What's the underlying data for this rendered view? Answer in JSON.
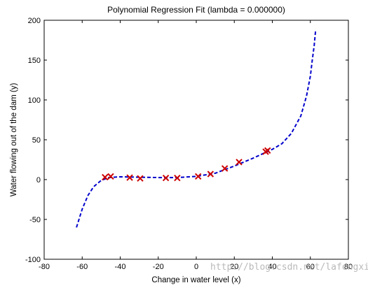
{
  "chart_data": {
    "type": "scatter",
    "title": "Polynomial Regression Fit (lambda = 0.000000)",
    "xlabel": "Change in water level (x)",
    "ylabel": "Water flowing out of the dam (y)",
    "xlim": [
      -80,
      80
    ],
    "ylim": [
      -100,
      200
    ],
    "xticks": [
      -80,
      -60,
      -40,
      -20,
      0,
      20,
      40,
      60,
      80
    ],
    "yticks": [
      -100,
      -50,
      0,
      50,
      100,
      150,
      200
    ],
    "grid": false,
    "legend": "none",
    "series": [
      {
        "kind": "scatter",
        "marker": "x",
        "color": "#cc0000",
        "points": [
          [
            -48,
            3
          ],
          [
            -45,
            4
          ],
          [
            -35,
            2.5
          ],
          [
            -29.5,
            1.5
          ],
          [
            -16,
            2
          ],
          [
            -10,
            2
          ],
          [
            1,
            4
          ],
          [
            7.5,
            7
          ],
          [
            15,
            14
          ],
          [
            22.5,
            22
          ],
          [
            36.5,
            35
          ],
          [
            37.5,
            36.5
          ]
        ]
      },
      {
        "kind": "line",
        "style": "dashed",
        "color": "#0000cc",
        "points": [
          [
            -63,
            -60
          ],
          [
            -60,
            -37
          ],
          [
            -57,
            -20
          ],
          [
            -54,
            -9
          ],
          [
            -50,
            -1
          ],
          [
            -46,
            2.5
          ],
          [
            -40,
            3.5
          ],
          [
            -30,
            3
          ],
          [
            -20,
            2.5
          ],
          [
            -10,
            2.5
          ],
          [
            0,
            4
          ],
          [
            10,
            8
          ],
          [
            20,
            17
          ],
          [
            30,
            27
          ],
          [
            40,
            38
          ],
          [
            45,
            45
          ],
          [
            50,
            58
          ],
          [
            55,
            80
          ],
          [
            58,
            105
          ],
          [
            60,
            130
          ],
          [
            61,
            150
          ],
          [
            62,
            168
          ],
          [
            62.7,
            186
          ]
        ]
      }
    ]
  },
  "watermark": "http://blog.csdn.net/lafengxiaoyu"
}
